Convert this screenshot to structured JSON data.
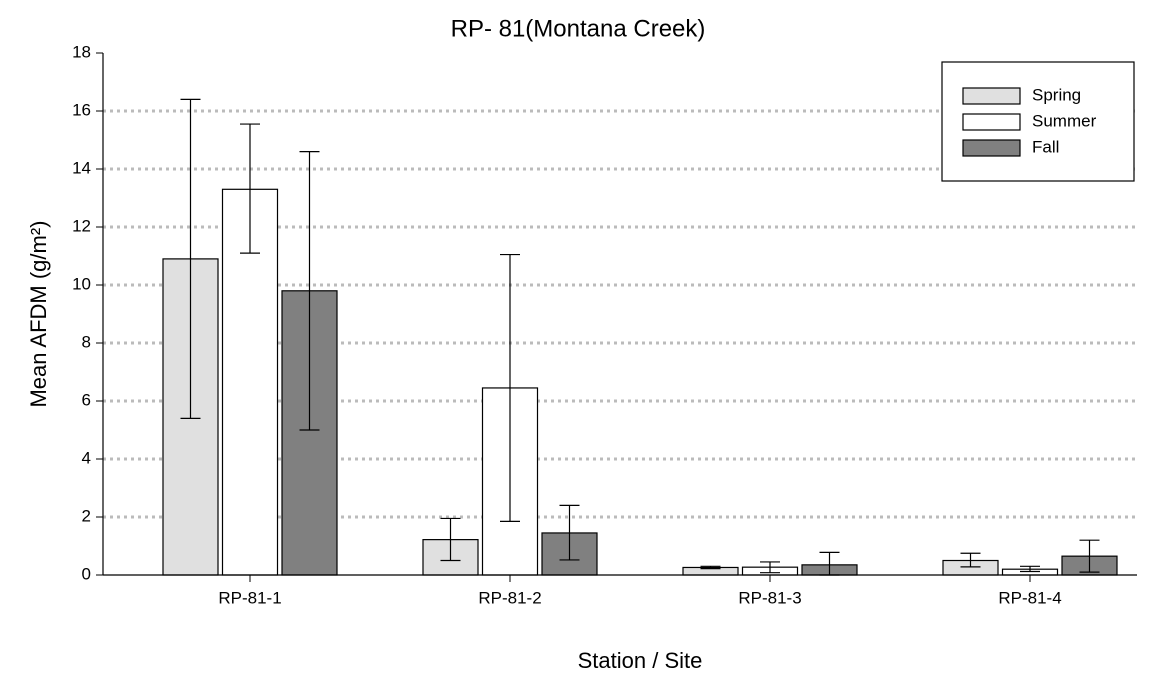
{
  "chart_data": {
    "type": "bar",
    "title": "RP- 81(Montana Creek)",
    "x_label": "Station / Site",
    "y_label": "Mean AFDM (g/m²)",
    "categories": [
      "RP-81-1",
      "RP-81-2",
      "RP-81-3",
      "RP-81-4"
    ],
    "series": [
      {
        "name": "Spring",
        "color": "#e0e0e0",
        "values": [
          10.9,
          1.22,
          0.26,
          0.5
        ],
        "lower": [
          5.4,
          0.5,
          0.22,
          0.28
        ],
        "upper": [
          16.4,
          1.95,
          0.3,
          0.75
        ]
      },
      {
        "name": "Summer",
        "color": "#ffffff",
        "values": [
          13.3,
          6.45,
          0.27,
          0.2
        ],
        "lower": [
          11.1,
          1.85,
          0.08,
          0.12
        ],
        "upper": [
          15.55,
          11.05,
          0.45,
          0.3
        ]
      },
      {
        "name": "Fall",
        "color": "#808080",
        "values": [
          9.8,
          1.45,
          0.35,
          0.65
        ],
        "lower": [
          5.0,
          0.52,
          0.0,
          0.1
        ],
        "upper": [
          14.6,
          2.4,
          0.78,
          1.2
        ]
      }
    ],
    "ylim": [
      0,
      18
    ],
    "yticks": [
      0,
      2,
      4,
      6,
      8,
      10,
      12,
      14,
      16,
      18
    ],
    "grid": true,
    "legend": "upper right"
  }
}
